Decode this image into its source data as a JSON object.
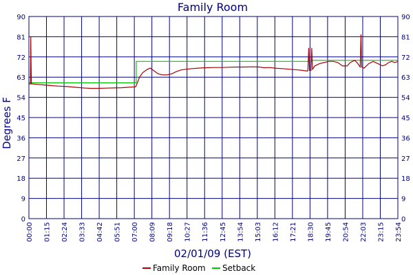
{
  "chart_data": {
    "type": "line",
    "title": "Family Room",
    "xlabel": "02/01/09 (EST)",
    "ylabel": "Degrees F",
    "ylim": [
      0,
      90
    ],
    "yticks": [
      0,
      9,
      18,
      27,
      36,
      45,
      54,
      63,
      72,
      81,
      90
    ],
    "xlim_hours": [
      0,
      24
    ],
    "xticks": [
      "00:00",
      "01:15",
      "02:24",
      "03:33",
      "04:42",
      "05:51",
      "07:00",
      "08:09",
      "09:18",
      "10:27",
      "11:36",
      "12:45",
      "13:54",
      "15:03",
      "16:12",
      "17:21",
      "18:30",
      "19:45",
      "20:54",
      "22:03",
      "23:15",
      "23:54"
    ],
    "grid": true,
    "legend_position": "bottom",
    "series": [
      {
        "name": "Family Room",
        "color": "#aa0000",
        "points": [
          [
            0.0,
            60.0
          ],
          [
            0.1,
            60.0
          ],
          [
            0.12,
            81.0
          ],
          [
            0.14,
            70.0
          ],
          [
            0.16,
            60.0
          ],
          [
            0.25,
            60.0
          ],
          [
            0.5,
            59.8
          ],
          [
            1.0,
            59.5
          ],
          [
            1.5,
            59.2
          ],
          [
            2.0,
            59.0
          ],
          [
            2.5,
            58.8
          ],
          [
            3.0,
            58.5
          ],
          [
            3.5,
            58.2
          ],
          [
            4.0,
            58.0
          ],
          [
            4.5,
            58.0
          ],
          [
            5.0,
            58.1
          ],
          [
            5.5,
            58.2
          ],
          [
            6.0,
            58.3
          ],
          [
            6.5,
            58.5
          ],
          [
            6.95,
            58.7
          ],
          [
            7.05,
            60.5
          ],
          [
            7.2,
            63.0
          ],
          [
            7.4,
            65.0
          ],
          [
            7.7,
            66.5
          ],
          [
            7.9,
            67.0
          ],
          [
            8.1,
            66.0
          ],
          [
            8.4,
            64.5
          ],
          [
            8.7,
            64.0
          ],
          [
            9.0,
            64.0
          ],
          [
            9.3,
            64.5
          ],
          [
            9.6,
            65.5
          ],
          [
            9.9,
            66.2
          ],
          [
            10.2,
            66.5
          ],
          [
            10.6,
            66.8
          ],
          [
            11.0,
            67.0
          ],
          [
            11.5,
            67.2
          ],
          [
            12.0,
            67.3
          ],
          [
            12.5,
            67.3
          ],
          [
            13.0,
            67.4
          ],
          [
            13.5,
            67.5
          ],
          [
            14.0,
            67.5
          ],
          [
            14.5,
            67.6
          ],
          [
            15.0,
            67.5
          ],
          [
            15.3,
            67.2
          ],
          [
            15.7,
            67.3
          ],
          [
            16.0,
            67.0
          ],
          [
            16.5,
            66.8
          ],
          [
            17.0,
            66.5
          ],
          [
            17.5,
            66.2
          ],
          [
            17.8,
            66.0
          ],
          [
            18.0,
            65.8
          ],
          [
            18.15,
            65.8
          ],
          [
            18.2,
            76.0
          ],
          [
            18.25,
            66.0
          ],
          [
            18.35,
            66.0
          ],
          [
            18.4,
            76.0
          ],
          [
            18.45,
            66.5
          ],
          [
            18.6,
            68.0
          ],
          [
            18.9,
            69.0
          ],
          [
            19.2,
            69.5
          ],
          [
            19.5,
            70.0
          ],
          [
            19.8,
            70.0
          ],
          [
            20.1,
            69.5
          ],
          [
            20.4,
            68.0
          ],
          [
            20.7,
            68.0
          ],
          [
            20.9,
            69.5
          ],
          [
            21.2,
            70.5
          ],
          [
            21.4,
            69.0
          ],
          [
            21.55,
            67.5
          ],
          [
            21.6,
            82.0
          ],
          [
            21.65,
            67.5
          ],
          [
            21.8,
            67.0
          ],
          [
            22.1,
            69.0
          ],
          [
            22.4,
            70.0
          ],
          [
            22.7,
            69.0
          ],
          [
            23.0,
            68.0
          ],
          [
            23.2,
            68.5
          ],
          [
            23.4,
            69.5
          ],
          [
            23.6,
            70.0
          ],
          [
            23.8,
            69.5
          ],
          [
            24.0,
            70.0
          ]
        ]
      },
      {
        "name": "Setback",
        "color": "#00cc00",
        "points": [
          [
            0.0,
            60.5
          ],
          [
            6.98,
            60.5
          ],
          [
            6.98,
            70.0
          ],
          [
            18.4,
            70.0
          ],
          [
            18.4,
            70.5
          ],
          [
            24.0,
            70.5
          ]
        ]
      }
    ]
  }
}
